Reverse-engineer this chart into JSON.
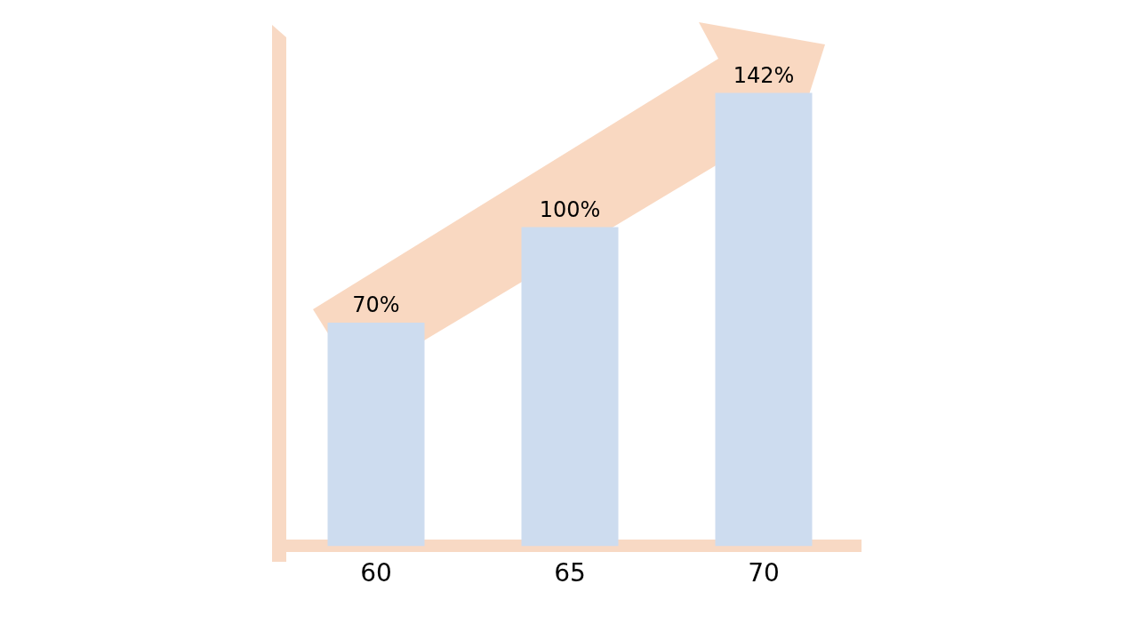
{
  "chart_data": {
    "type": "bar",
    "categories": [
      "60",
      "65",
      "70"
    ],
    "values": [
      70,
      100,
      142
    ],
    "value_labels": [
      "70%",
      "100%",
      "142%"
    ],
    "color": "#cddcef",
    "grid": false,
    "legend": false,
    "tick_labels": "x"
  }
}
